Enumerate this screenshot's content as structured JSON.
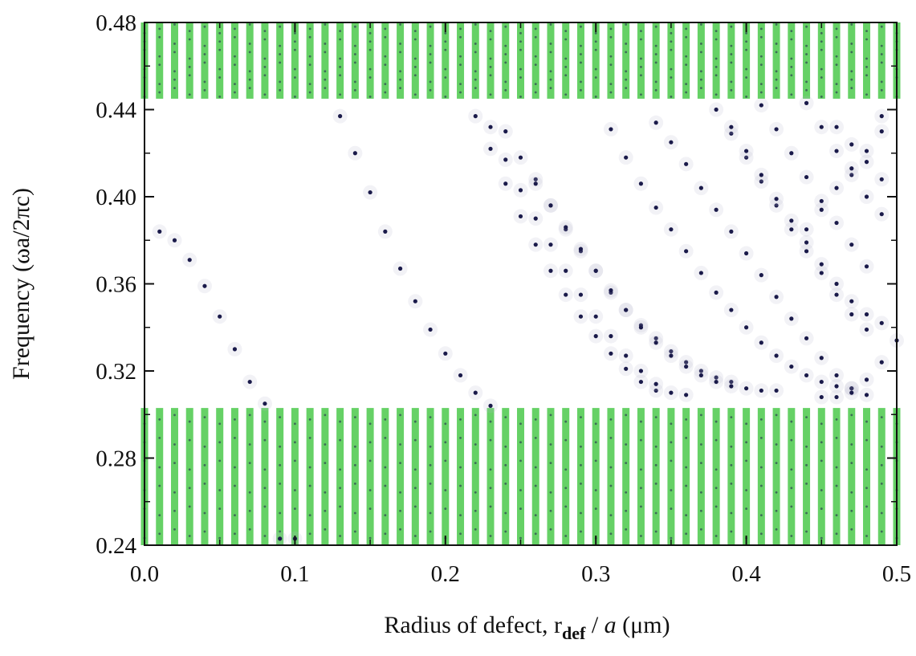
{
  "chart_data": {
    "type": "scatter",
    "title": "",
    "xlabel": {
      "prefix": "Radius of defect, r",
      "subscript": "def",
      "slash": " / ",
      "italic": "a",
      "unit": " (μm)"
    },
    "ylabel": "Frequency (ωa/2πc)",
    "xlim": [
      0.0,
      0.5
    ],
    "ylim": [
      0.24,
      0.48
    ],
    "x_ticks": [
      "0.0",
      "0.1",
      "0.2",
      "0.3",
      "0.4",
      "0.5"
    ],
    "y_ticks": [
      "0.24",
      "0.28",
      "0.32",
      "0.36",
      "0.40",
      "0.44",
      "0.48"
    ],
    "grid": false,
    "colors": {
      "band": "#55cc55",
      "defect": "#1a1a4a",
      "axis": "#111111"
    },
    "bands": [
      {
        "name": "lower band",
        "y_range": [
          0.24,
          0.303
        ],
        "x_step": 0.01
      },
      {
        "name": "upper band",
        "y_range": [
          0.445,
          0.48
        ],
        "x_step": 0.01
      }
    ],
    "series": [
      {
        "points": [
          [
            0.01,
            0.384
          ],
          [
            0.02,
            0.38
          ],
          [
            0.03,
            0.371
          ],
          [
            0.04,
            0.359
          ],
          [
            0.05,
            0.345
          ],
          [
            0.06,
            0.33
          ],
          [
            0.07,
            0.315
          ],
          [
            0.08,
            0.305
          ],
          [
            0.09,
            0.243
          ],
          [
            0.1,
            0.243
          ]
        ]
      },
      {
        "points": [
          [
            0.13,
            0.437
          ],
          [
            0.14,
            0.42
          ],
          [
            0.15,
            0.402
          ],
          [
            0.16,
            0.384
          ],
          [
            0.17,
            0.367
          ],
          [
            0.18,
            0.352
          ],
          [
            0.19,
            0.339
          ],
          [
            0.2,
            0.328
          ],
          [
            0.21,
            0.318
          ],
          [
            0.22,
            0.31
          ],
          [
            0.23,
            0.304
          ]
        ]
      },
      {
        "points": [
          [
            0.22,
            0.437
          ],
          [
            0.23,
            0.422
          ],
          [
            0.24,
            0.406
          ],
          [
            0.25,
            0.391
          ],
          [
            0.26,
            0.378
          ],
          [
            0.27,
            0.366
          ],
          [
            0.28,
            0.355
          ],
          [
            0.29,
            0.345
          ],
          [
            0.3,
            0.336
          ],
          [
            0.31,
            0.328
          ],
          [
            0.32,
            0.321
          ],
          [
            0.33,
            0.315
          ],
          [
            0.34,
            0.311
          ]
        ]
      },
      {
        "points": [
          [
            0.23,
            0.432
          ],
          [
            0.24,
            0.417
          ],
          [
            0.25,
            0.403
          ],
          [
            0.26,
            0.39
          ],
          [
            0.27,
            0.378
          ],
          [
            0.28,
            0.366
          ],
          [
            0.29,
            0.355
          ],
          [
            0.3,
            0.345
          ],
          [
            0.31,
            0.336
          ],
          [
            0.32,
            0.327
          ],
          [
            0.33,
            0.32
          ],
          [
            0.34,
            0.314
          ],
          [
            0.35,
            0.31
          ],
          [
            0.36,
            0.309
          ]
        ]
      },
      {
        "points": [
          [
            0.24,
            0.43
          ],
          [
            0.25,
            0.418
          ],
          [
            0.26,
            0.408
          ],
          [
            0.27,
            0.396
          ],
          [
            0.28,
            0.385
          ],
          [
            0.29,
            0.375
          ],
          [
            0.3,
            0.366
          ],
          [
            0.31,
            0.356
          ],
          [
            0.32,
            0.348
          ],
          [
            0.33,
            0.341
          ],
          [
            0.34,
            0.335
          ],
          [
            0.35,
            0.329
          ],
          [
            0.36,
            0.324
          ],
          [
            0.37,
            0.32
          ],
          [
            0.38,
            0.317
          ],
          [
            0.39,
            0.315
          ]
        ]
      },
      {
        "points": [
          [
            0.26,
            0.406
          ],
          [
            0.27,
            0.396
          ],
          [
            0.28,
            0.386
          ],
          [
            0.29,
            0.376
          ],
          [
            0.3,
            0.366
          ],
          [
            0.31,
            0.357
          ],
          [
            0.32,
            0.348
          ],
          [
            0.33,
            0.34
          ],
          [
            0.34,
            0.333
          ],
          [
            0.35,
            0.327
          ],
          [
            0.36,
            0.322
          ],
          [
            0.37,
            0.318
          ],
          [
            0.38,
            0.315
          ],
          [
            0.39,
            0.313
          ],
          [
            0.4,
            0.312
          ],
          [
            0.41,
            0.311
          ],
          [
            0.42,
            0.311
          ]
        ]
      },
      {
        "points": [
          [
            0.31,
            0.431
          ],
          [
            0.32,
            0.418
          ],
          [
            0.33,
            0.406
          ],
          [
            0.34,
            0.395
          ],
          [
            0.35,
            0.385
          ],
          [
            0.36,
            0.375
          ],
          [
            0.37,
            0.365
          ],
          [
            0.38,
            0.356
          ],
          [
            0.39,
            0.348
          ],
          [
            0.4,
            0.34
          ],
          [
            0.41,
            0.333
          ],
          [
            0.42,
            0.327
          ],
          [
            0.43,
            0.322
          ],
          [
            0.44,
            0.318
          ],
          [
            0.45,
            0.315
          ],
          [
            0.46,
            0.313
          ],
          [
            0.47,
            0.312
          ]
        ]
      },
      {
        "points": [
          [
            0.34,
            0.434
          ],
          [
            0.35,
            0.425
          ],
          [
            0.36,
            0.415
          ],
          [
            0.37,
            0.404
          ],
          [
            0.38,
            0.394
          ],
          [
            0.39,
            0.384
          ],
          [
            0.4,
            0.374
          ],
          [
            0.41,
            0.364
          ],
          [
            0.42,
            0.354
          ],
          [
            0.43,
            0.344
          ],
          [
            0.44,
            0.335
          ],
          [
            0.45,
            0.326
          ],
          [
            0.46,
            0.318
          ],
          [
            0.47,
            0.312
          ],
          [
            0.48,
            0.309
          ]
        ]
      },
      {
        "points": [
          [
            0.38,
            0.44
          ],
          [
            0.39,
            0.429
          ],
          [
            0.4,
            0.418
          ],
          [
            0.41,
            0.407
          ],
          [
            0.42,
            0.396
          ],
          [
            0.43,
            0.385
          ],
          [
            0.44,
            0.375
          ],
          [
            0.45,
            0.365
          ],
          [
            0.46,
            0.355
          ],
          [
            0.47,
            0.346
          ],
          [
            0.48,
            0.339
          ]
        ]
      },
      {
        "points": [
          [
            0.39,
            0.432
          ],
          [
            0.4,
            0.421
          ],
          [
            0.41,
            0.41
          ],
          [
            0.42,
            0.399
          ],
          [
            0.43,
            0.389
          ],
          [
            0.44,
            0.379
          ],
          [
            0.45,
            0.369
          ],
          [
            0.46,
            0.36
          ],
          [
            0.47,
            0.352
          ],
          [
            0.48,
            0.346
          ],
          [
            0.49,
            0.342
          ]
        ]
      },
      {
        "points": [
          [
            0.41,
            0.442
          ],
          [
            0.42,
            0.431
          ],
          [
            0.43,
            0.42
          ],
          [
            0.44,
            0.409
          ],
          [
            0.45,
            0.398
          ],
          [
            0.46,
            0.388
          ],
          [
            0.47,
            0.378
          ],
          [
            0.48,
            0.368
          ]
        ]
      },
      {
        "points": [
          [
            0.44,
            0.443
          ],
          [
            0.45,
            0.432
          ],
          [
            0.46,
            0.421
          ],
          [
            0.47,
            0.41
          ],
          [
            0.48,
            0.4
          ],
          [
            0.49,
            0.392
          ]
        ]
      },
      {
        "points": [
          [
            0.46,
            0.432
          ],
          [
            0.47,
            0.424
          ],
          [
            0.48,
            0.416
          ],
          [
            0.49,
            0.408
          ]
        ]
      },
      {
        "points": [
          [
            0.49,
            0.437
          ],
          [
            0.49,
            0.43
          ],
          [
            0.48,
            0.421
          ],
          [
            0.47,
            0.413
          ],
          [
            0.46,
            0.404
          ],
          [
            0.45,
            0.394
          ],
          [
            0.44,
            0.385
          ]
        ]
      },
      {
        "points": [
          [
            0.45,
            0.308
          ],
          [
            0.46,
            0.308
          ],
          [
            0.47,
            0.31
          ],
          [
            0.48,
            0.316
          ],
          [
            0.49,
            0.324
          ],
          [
            0.5,
            0.334
          ]
        ]
      }
    ]
  }
}
